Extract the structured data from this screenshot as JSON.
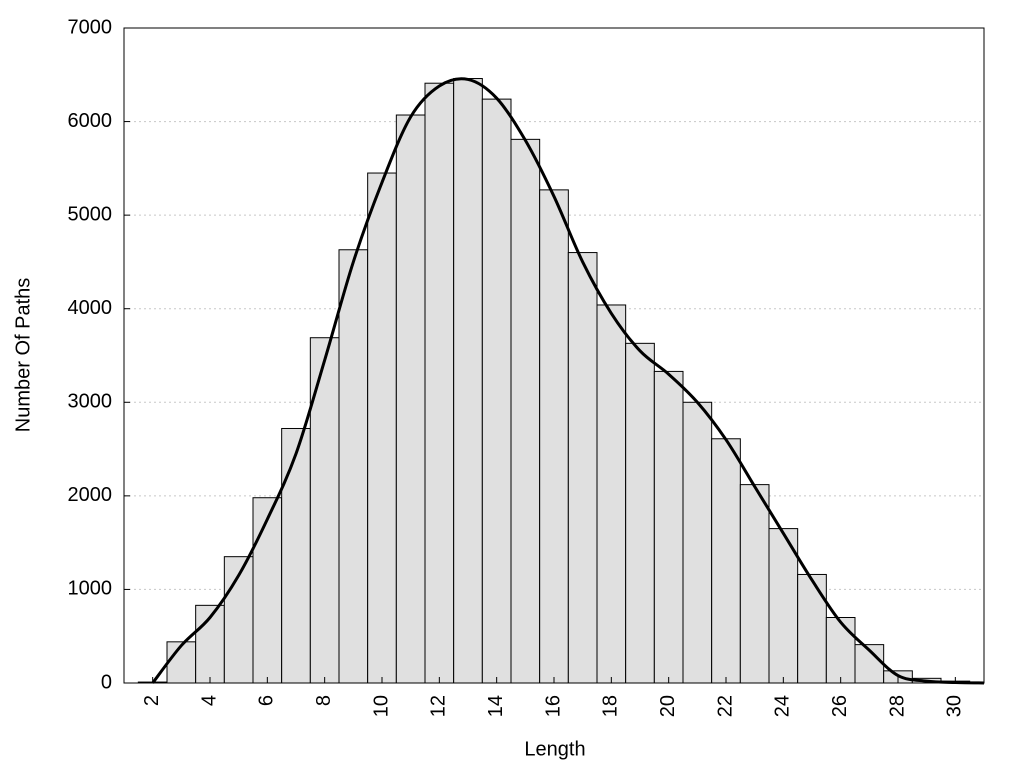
{
  "chart_data": {
    "type": "histogram",
    "xlabel": "Length",
    "ylabel": "Number Of Paths",
    "bins": [
      1.5,
      2.5,
      3.5,
      4.5,
      5.5,
      6.5,
      7.5,
      8.5,
      9.5,
      10.5,
      11.5,
      12.5,
      13.5,
      14.5,
      15.5,
      16.5,
      17.5,
      18.5,
      19.5,
      20.5,
      21.5,
      22.5,
      23.5,
      24.5,
      25.5,
      26.5,
      27.5,
      28.5,
      29.5,
      30.5
    ],
    "values": [
      10,
      440,
      830,
      1350,
      1980,
      2720,
      3690,
      4630,
      5450,
      6070,
      6410,
      6460,
      6240,
      5810,
      5270,
      4600,
      4040,
      3630,
      3330,
      3000,
      2610,
      2120,
      1650,
      1160,
      700,
      410,
      130,
      50,
      20
    ],
    "color": "#e0e0e0",
    "curve": {
      "color": "#000000",
      "x": [
        2,
        3,
        4,
        5,
        6,
        7,
        8,
        9,
        10,
        11,
        12,
        13,
        14,
        15,
        16,
        17,
        18,
        19,
        20,
        21,
        22,
        23,
        24,
        25,
        26,
        27,
        28,
        29,
        30,
        31
      ],
      "values": [
        0,
        400,
        700,
        1150,
        1750,
        2450,
        3450,
        4500,
        5350,
        6050,
        6380,
        6450,
        6250,
        5800,
        5200,
        4500,
        3950,
        3550,
        3300,
        3000,
        2600,
        2100,
        1600,
        1100,
        650,
        350,
        80,
        20,
        5,
        0
      ]
    },
    "xlim": [
      1,
      31
    ],
    "ylim": [
      0,
      7000
    ],
    "xticks": [
      2,
      4,
      6,
      8,
      10,
      12,
      14,
      16,
      18,
      20,
      22,
      24,
      26,
      28,
      30
    ],
    "yticks": [
      0,
      1000,
      2000,
      3000,
      4000,
      5000,
      6000,
      7000
    ],
    "grid": true
  }
}
